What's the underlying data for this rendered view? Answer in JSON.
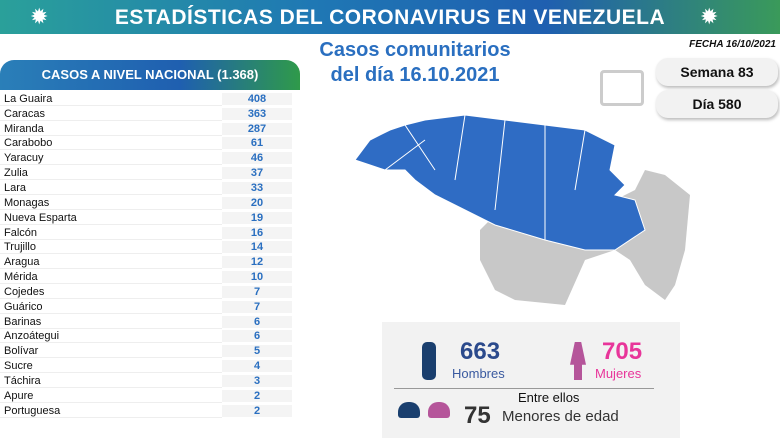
{
  "header": {
    "title": "ESTADÍSTICAS DEL CORONAVIRUS EN VENEZUELA"
  },
  "subtitle": {
    "line1": "Casos comunitarios",
    "line2": "del día 16.10.2021"
  },
  "fecha": "FECHA 16/10/2021",
  "national": {
    "label": "CASOS A NIVEL NACIONAL (1.368)"
  },
  "states": [
    {
      "name": "La Guaira",
      "cases": "408"
    },
    {
      "name": "Caracas",
      "cases": "363"
    },
    {
      "name": "Miranda",
      "cases": "287"
    },
    {
      "name": "Carabobo",
      "cases": "61"
    },
    {
      "name": "Yaracuy",
      "cases": "46"
    },
    {
      "name": "Zulia",
      "cases": "37"
    },
    {
      "name": "Lara",
      "cases": "33"
    },
    {
      "name": "Monagas",
      "cases": "20"
    },
    {
      "name": "Nueva Esparta",
      "cases": "19"
    },
    {
      "name": "Falcón",
      "cases": "16"
    },
    {
      "name": "Trujillo",
      "cases": "14"
    },
    {
      "name": "Aragua",
      "cases": "12"
    },
    {
      "name": "Mérida",
      "cases": "10"
    },
    {
      "name": "Cojedes",
      "cases": "7"
    },
    {
      "name": "Guárico",
      "cases": "7"
    },
    {
      "name": "Barinas",
      "cases": "6"
    },
    {
      "name": "Anzoátegui",
      "cases": "6"
    },
    {
      "name": "Bolívar",
      "cases": "5"
    },
    {
      "name": "Sucre",
      "cases": "4"
    },
    {
      "name": "Táchira",
      "cases": "3"
    },
    {
      "name": "Apure",
      "cases": "2"
    },
    {
      "name": "Portuguesa",
      "cases": "2"
    }
  ],
  "semana": "Semana 83",
  "dia": "Día 580",
  "gender": {
    "men": "663",
    "men_label": "Hombres",
    "women": "705",
    "women_label": "Mujeres"
  },
  "minors": {
    "prefix": "Entre ellos",
    "count": "75",
    "label": "Menores de edad"
  },
  "colors": {
    "blue": "#2a6fc0",
    "men": "#1a3f6e",
    "women": "#b5559a",
    "pink": "#e8359a"
  }
}
